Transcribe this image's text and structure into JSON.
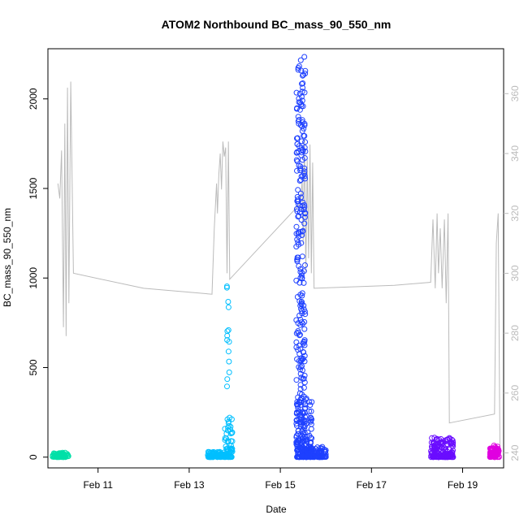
{
  "chart_data": {
    "type": "scatter",
    "title": "ATOM2 Northbound BC_mass_90_550_nm",
    "xlabel": "Date",
    "ylabel": "BC_mass_90_550_nm",
    "x_range_days": [
      9.9,
      19.9
    ],
    "x_ticks": [
      {
        "day": 11,
        "label": "Feb 11"
      },
      {
        "day": 13,
        "label": "Feb 13"
      },
      {
        "day": 15,
        "label": "Feb 15"
      },
      {
        "day": 17,
        "label": "Feb 17"
      },
      {
        "day": 19,
        "label": "Feb 19"
      }
    ],
    "ylim": [
      -60,
      2280
    ],
    "y_ticks": [
      0,
      500,
      1000,
      1500,
      2000
    ],
    "y2lim": [
      235,
      375
    ],
    "y2_ticks": [
      240,
      260,
      280,
      300,
      320,
      340,
      360
    ],
    "y2_color": "#bbbbbb",
    "line_color": "#bbbbbb",
    "line_series": [
      [
        10.12,
        330
      ],
      [
        10.16,
        325
      ],
      [
        10.2,
        341
      ],
      [
        10.24,
        282
      ],
      [
        10.27,
        350
      ],
      [
        10.3,
        279
      ],
      [
        10.33,
        362
      ],
      [
        10.36,
        290
      ],
      [
        10.4,
        364
      ],
      [
        10.46,
        300
      ],
      [
        12.0,
        295
      ],
      [
        13.5,
        293
      ],
      [
        13.55,
        315
      ],
      [
        13.6,
        330
      ],
      [
        13.62,
        320
      ],
      [
        13.65,
        333
      ],
      [
        13.68,
        340
      ],
      [
        13.71,
        328
      ],
      [
        13.74,
        344
      ],
      [
        13.77,
        339
      ],
      [
        13.8,
        342
      ],
      [
        13.83,
        300
      ],
      [
        13.86,
        344
      ],
      [
        13.89,
        298
      ],
      [
        15.42,
        323
      ],
      [
        15.45,
        325
      ],
      [
        15.48,
        331
      ],
      [
        15.5,
        310
      ],
      [
        15.53,
        345
      ],
      [
        15.56,
        300
      ],
      [
        15.59,
        338
      ],
      [
        15.62,
        305
      ],
      [
        15.65,
        343
      ],
      [
        15.68,
        300
      ],
      [
        15.71,
        337
      ],
      [
        15.74,
        295
      ],
      [
        17.5,
        296
      ],
      [
        18.3,
        297
      ],
      [
        18.35,
        318
      ],
      [
        18.4,
        295
      ],
      [
        18.44,
        320
      ],
      [
        18.47,
        300
      ],
      [
        18.51,
        315
      ],
      [
        18.55,
        295
      ],
      [
        18.6,
        318
      ],
      [
        18.64,
        290
      ],
      [
        18.68,
        320
      ],
      [
        18.71,
        250
      ],
      [
        19.7,
        253
      ],
      [
        19.74,
        310
      ],
      [
        19.78,
        320
      ],
      [
        19.82,
        241
      ]
    ],
    "series": [
      {
        "color": "#00e0a8",
        "x_range": [
          10.0,
          10.35
        ],
        "y_range": [
          0,
          25
        ],
        "count": 80,
        "spread": "cluster"
      },
      {
        "color": "#00bfff",
        "x_range": [
          13.4,
          13.78
        ],
        "y_range": [
          0,
          30
        ],
        "count": 80,
        "spread": "cluster"
      },
      {
        "color": "#00bfff",
        "x_range": [
          13.78,
          13.95
        ],
        "y_range": [
          0,
          230
        ],
        "count": 60,
        "spread": "cluster"
      },
      {
        "color": "#00bfff",
        "x_range": [
          13.82,
          13.88
        ],
        "y_range": [
          390,
          1060
        ],
        "count": 14,
        "spread": "sparse"
      },
      {
        "color": "#1e40ff",
        "x_range": [
          15.35,
          15.55
        ],
        "y_range": [
          0,
          2240
        ],
        "count": 260,
        "spread": "tower"
      },
      {
        "color": "#1e40ff",
        "x_range": [
          15.35,
          15.7
        ],
        "y_range": [
          0,
          350
        ],
        "count": 140,
        "spread": "cluster"
      },
      {
        "color": "#1e40ff",
        "x_range": [
          15.5,
          16.0
        ],
        "y_range": [
          0,
          60
        ],
        "count": 110,
        "spread": "cluster"
      },
      {
        "color": "#6a0dff",
        "x_range": [
          18.3,
          18.8
        ],
        "y_range": [
          0,
          110
        ],
        "count": 160,
        "spread": "cluster"
      },
      {
        "color": "#e000e0",
        "x_range": [
          19.6,
          19.8
        ],
        "y_range": [
          0,
          65
        ],
        "count": 80,
        "spread": "cluster"
      }
    ]
  }
}
